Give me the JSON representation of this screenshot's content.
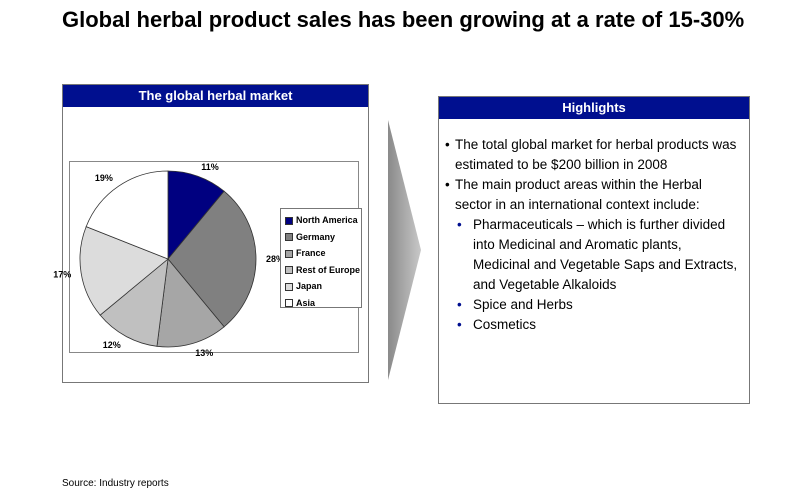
{
  "title": "Global herbal product sales has been growing at a rate of 15-30%",
  "left_panel": {
    "header": "The global herbal market"
  },
  "right_panel": {
    "header": "Highlights",
    "bullet1": "The total global market for herbal products was estimated to be $200 billion in 2008",
    "bullet2": "The main product areas within the Herbal sector in an international context include:",
    "sub1": "Pharmaceuticals – which is further divided into Medicinal and Aromatic plants, Medicinal and Vegetable Saps and Extracts, and Vegetable Alkaloids",
    "sub2": "Spice and Herbs",
    "sub3": "Cosmetics",
    "bullet_symbol": "•"
  },
  "source": "Source: Industry reports",
  "chart_data": {
    "type": "pie",
    "title": "",
    "legend_position": "right",
    "slices": [
      {
        "label": "North America",
        "value": 11,
        "display": "11%",
        "color": "#000080"
      },
      {
        "label": "Germany",
        "value": 28,
        "display": "28%",
        "color": "#808080"
      },
      {
        "label": "France",
        "value": 13,
        "display": "13%",
        "color": "#a6a6a6"
      },
      {
        "label": "Rest of Europe",
        "value": 12,
        "display": "12%",
        "color": "#c0c0c0"
      },
      {
        "label": "Japan",
        "value": 17,
        "display": "17%",
        "color": "#dcdcdc"
      },
      {
        "label": "Asia",
        "value": 19,
        "display": "19%",
        "color": "#ffffff"
      }
    ]
  }
}
